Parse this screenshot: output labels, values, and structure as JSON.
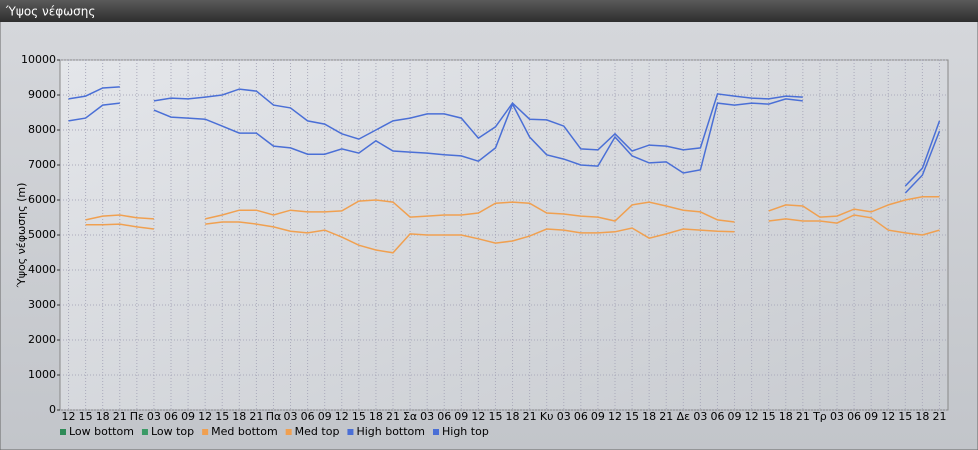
{
  "chart_data": {
    "type": "line",
    "title": "Ύψος νέφωσης",
    "y_label": "Ύψος νέφωσης (m)",
    "categories": [
      "12",
      "15",
      "18",
      "21",
      "Πε",
      "03",
      "06",
      "09",
      "12",
      "15",
      "18",
      "21",
      "Πα",
      "03",
      "06",
      "09",
      "12",
      "15",
      "18",
      "21",
      "Σα",
      "03",
      "06",
      "09",
      "12",
      "15",
      "18",
      "21",
      "Κυ",
      "03",
      "06",
      "09",
      "12",
      "15",
      "18",
      "21",
      "Δε",
      "03",
      "06",
      "09",
      "12",
      "15",
      "18",
      "21",
      "Τρ",
      "03",
      "06",
      "09",
      "12",
      "15",
      "18",
      "21"
    ],
    "ylim": [
      0,
      10000
    ],
    "yticks": [
      0,
      1000,
      2000,
      3000,
      4000,
      5000,
      6000,
      7000,
      8000,
      9000,
      10000
    ],
    "grid": true,
    "legend": "bottom",
    "series": [
      {
        "name": "Low bottom",
        "color": "#2e8b57",
        "values": [
          null,
          null,
          null,
          null,
          null,
          null,
          null,
          null,
          null,
          null,
          null,
          null,
          null,
          null,
          null,
          null,
          null,
          null,
          null,
          null,
          null,
          null,
          null,
          null,
          null,
          null,
          null,
          null,
          null,
          null,
          null,
          null,
          null,
          null,
          null,
          null,
          null,
          null,
          null,
          null,
          null,
          null,
          null,
          null,
          null,
          null,
          null,
          null,
          null,
          null,
          null,
          null
        ]
      },
      {
        "name": "Low top",
        "color": "#3a9a66",
        "values": [
          null,
          null,
          null,
          null,
          null,
          null,
          null,
          null,
          null,
          null,
          null,
          null,
          null,
          null,
          null,
          null,
          null,
          null,
          null,
          null,
          null,
          null,
          null,
          null,
          null,
          null,
          null,
          null,
          null,
          null,
          null,
          null,
          null,
          null,
          null,
          null,
          null,
          null,
          null,
          null,
          null,
          null,
          null,
          null,
          null,
          null,
          null,
          null,
          null,
          null,
          null,
          null
        ]
      },
      {
        "name": "Med bottom",
        "color": "#f0a050",
        "values": [
          null,
          5290,
          5290,
          5310,
          5230,
          5170,
          null,
          null,
          5310,
          5370,
          5370,
          5310,
          5230,
          5110,
          5060,
          5140,
          4940,
          4710,
          4570,
          4490,
          5030,
          5000,
          5000,
          5000,
          4890,
          4770,
          4830,
          4970,
          5170,
          5140,
          5060,
          5060,
          5090,
          5200,
          4910,
          5030,
          5170,
          5140,
          5110,
          5090,
          null,
          5400,
          5460,
          5400,
          5400,
          5340,
          5570,
          5490,
          5140,
          5060,
          5000,
          5140
        ]
      },
      {
        "name": "Med top",
        "color": "#f0a050",
        "values": [
          null,
          5430,
          5540,
          5570,
          5490,
          5460,
          null,
          null,
          5460,
          5570,
          5710,
          5710,
          5570,
          5710,
          5660,
          5660,
          5690,
          5970,
          6000,
          5940,
          5510,
          5540,
          5570,
          5570,
          5630,
          5910,
          5940,
          5910,
          5630,
          5600,
          5540,
          5510,
          5400,
          5860,
          5940,
          5830,
          5710,
          5660,
          5430,
          5370,
          null,
          5690,
          5860,
          5830,
          5510,
          5540,
          5740,
          5660,
          5860,
          6000,
          6090,
          6090
        ]
      },
      {
        "name": "High bottom",
        "color": "#4a6fd6",
        "values": [
          8260,
          8340,
          8710,
          8770,
          null,
          8570,
          8370,
          8340,
          8310,
          8110,
          7910,
          7910,
          7540,
          7490,
          7310,
          7310,
          7460,
          7340,
          7690,
          7400,
          7370,
          7340,
          7290,
          7260,
          7110,
          7490,
          8740,
          7800,
          7290,
          7170,
          7000,
          6970,
          7800,
          7260,
          7060,
          7090,
          6770,
          6860,
          8770,
          8710,
          8770,
          8740,
          8890,
          8830,
          null,
          null,
          null,
          null,
          null,
          6200,
          6710,
          7970
        ]
      },
      {
        "name": "High top",
        "color": "#4a6fd6",
        "values": [
          8890,
          8970,
          9200,
          9230,
          null,
          8830,
          8910,
          8890,
          8940,
          9000,
          9170,
          9110,
          8710,
          8630,
          8260,
          8170,
          7890,
          7740,
          8000,
          8260,
          8340,
          8460,
          8460,
          8340,
          7770,
          8090,
          8770,
          8310,
          8290,
          8110,
          7460,
          7430,
          7890,
          7400,
          7570,
          7540,
          7430,
          7490,
          9030,
          8970,
          8910,
          8890,
          8970,
          8940,
          null,
          null,
          null,
          null,
          null,
          6400,
          6910,
          8260
        ]
      }
    ]
  }
}
